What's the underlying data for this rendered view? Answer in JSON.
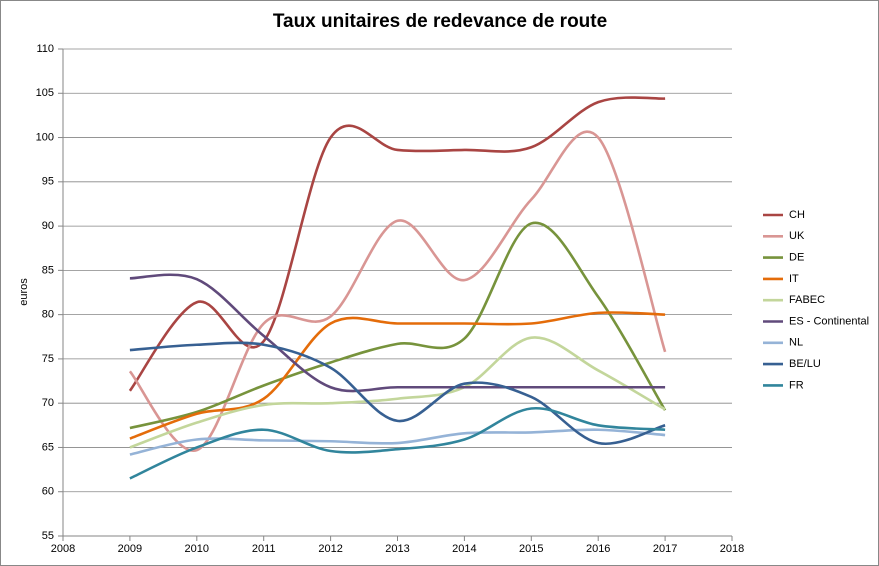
{
  "chart_data": {
    "type": "line",
    "title": "Taux unitaires de redevance de route",
    "y_label": "euros",
    "x": [
      2009,
      2010,
      2011,
      2012,
      2013,
      2014,
      2015,
      2016,
      2017
    ],
    "xlim": [
      2008,
      2018
    ],
    "xticks": [
      2008,
      2009,
      2010,
      2011,
      2012,
      2013,
      2014,
      2015,
      2016,
      2017,
      2018
    ],
    "ylim": [
      55,
      110
    ],
    "yticks": [
      55,
      60,
      65,
      70,
      75,
      80,
      85,
      90,
      95,
      100,
      105,
      110
    ],
    "grid": true,
    "legend": "right",
    "smooth": true,
    "series": [
      {
        "name": "CH",
        "color": "#a94543",
        "values": [
          71.4,
          81.4,
          77,
          100,
          98.6,
          98.6,
          98.9,
          104,
          104.4
        ]
      },
      {
        "name": "UK",
        "color": "#d99694",
        "values": [
          73.6,
          64.7,
          79,
          79.8,
          90.6,
          83.9,
          93,
          100,
          75.8
        ]
      },
      {
        "name": "DE",
        "color": "#77933c",
        "values": [
          67.2,
          69,
          72,
          74.6,
          76.7,
          77.3,
          90.3,
          82,
          69.2
        ]
      },
      {
        "name": "IT",
        "color": "#e46c0a",
        "values": [
          66,
          68.8,
          70.5,
          79,
          79,
          79,
          79,
          80.2,
          80
        ]
      },
      {
        "name": "FABEC",
        "color": "#c3d69b",
        "values": [
          65,
          67.8,
          69.8,
          70,
          70.5,
          71.8,
          77.4,
          73.7,
          69.3
        ]
      },
      {
        "name": "ES - Continental",
        "color": "#604a7b",
        "values": [
          84.1,
          84,
          77.6,
          71.8,
          71.8,
          71.8,
          71.8,
          71.8,
          71.8
        ]
      },
      {
        "name": "NL",
        "color": "#95b3d7",
        "values": [
          64.2,
          65.9,
          65.8,
          65.7,
          65.5,
          66.6,
          66.7,
          67,
          66.4
        ]
      },
      {
        "name": "BE/LU",
        "color": "#376092",
        "values": [
          76,
          76.6,
          76.6,
          74,
          68,
          72.2,
          70.7,
          65.5,
          67.5
        ]
      },
      {
        "name": "FR",
        "color": "#31859c",
        "values": [
          61.5,
          65,
          67,
          64.6,
          64.8,
          65.9,
          69.4,
          67.5,
          67
        ]
      }
    ]
  }
}
